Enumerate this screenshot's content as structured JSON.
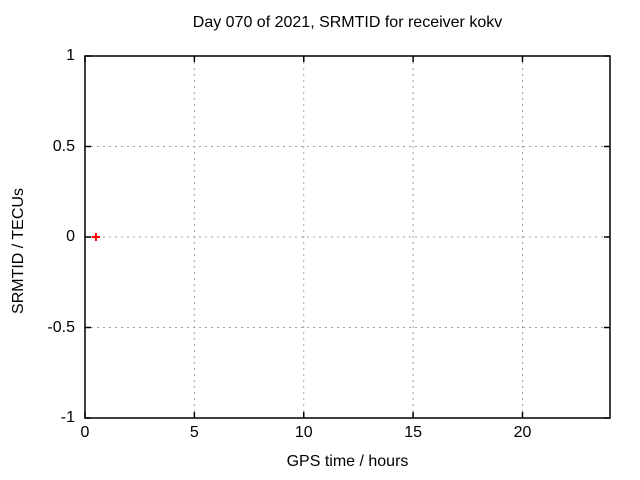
{
  "page": {
    "background": "#ffffff"
  },
  "chart_data": {
    "type": "scatter",
    "title": "Day 070 of 2021, SRMTID for receiver kokv",
    "xlabel": "GPS time / hours",
    "ylabel": "SRMTID / TECUs",
    "xlim": [
      0,
      24
    ],
    "ylim": [
      -1,
      1
    ],
    "xticks": [
      {
        "value": 0,
        "label": "0"
      },
      {
        "value": 5,
        "label": "5"
      },
      {
        "value": 10,
        "label": "10"
      },
      {
        "value": 15,
        "label": "15"
      },
      {
        "value": 20,
        "label": "20"
      }
    ],
    "yticks": [
      {
        "value": -1,
        "label": "-1"
      },
      {
        "value": -0.5,
        "label": "-0.5"
      },
      {
        "value": 0,
        "label": "0"
      },
      {
        "value": 0.5,
        "label": "0.5"
      },
      {
        "value": 1,
        "label": "1"
      }
    ],
    "grid": true,
    "grid_style": "dashed",
    "legend": false,
    "series": [
      {
        "name": "SRMTID",
        "marker": "plus",
        "color": "#ff0000",
        "points": [
          [
            0.5,
            0.0
          ]
        ]
      }
    ],
    "colors": {
      "border": "#000000",
      "grid": "#a0a0a0",
      "text": "#000000",
      "background": "#ffffff"
    }
  }
}
